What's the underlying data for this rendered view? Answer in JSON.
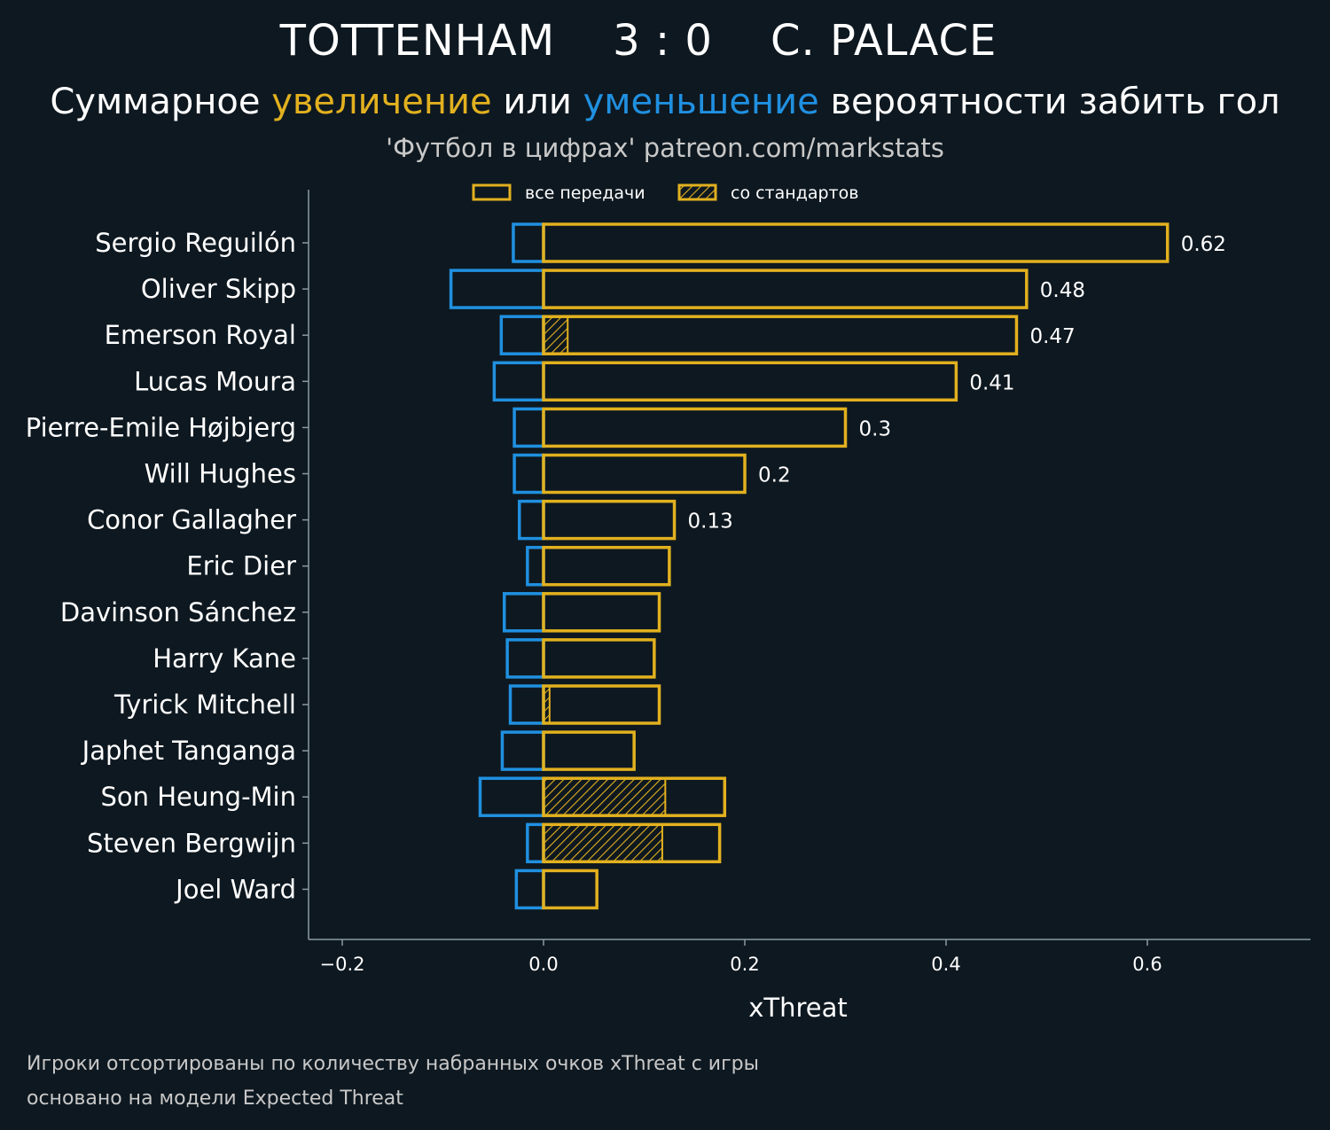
{
  "header": {
    "home_team": "TOTTENHAM",
    "score": "3 : 0",
    "away_team": "C. PALACE",
    "subtitle_part1": "Суммарное ",
    "subtitle_increase": "увеличение",
    "subtitle_part2": " или ",
    "subtitle_decrease": "уменьшение",
    "subtitle_part3": " вероятности забить гол",
    "source": "'Футбол в цифрах' patreon.com/markstats"
  },
  "footnotes": {
    "line1": "Игроки отсортированы по количеству набранных очков xThreat с игры",
    "line2": "основано на модели Expected Threat"
  },
  "colors": {
    "background": "#0e1820",
    "increase": "#e2b11f",
    "decrease": "#2090e0",
    "axis": "#8a9aa0",
    "text": "#ffffff"
  },
  "chart_data": {
    "type": "bar",
    "orientation": "horizontal",
    "title": "TOTTENHAM 3 : 0 C. PALACE",
    "xlabel": "xThreat",
    "ylabel": "",
    "xlim": [
      -0.23,
      0.76
    ],
    "xticks": [
      -0.2,
      0.0,
      0.2,
      0.4,
      0.6
    ],
    "xtick_labels": [
      "−0.2",
      "0.0",
      "0.2",
      "0.4",
      "0.6"
    ],
    "legend": {
      "placement": "top-center",
      "entries": [
        "все передачи",
        "со стандартов"
      ]
    },
    "categories": [
      "Sergio Reguilón",
      "Oliver Skipp",
      "Emerson Royal",
      "Lucas Moura",
      "Pierre-Emile Højbjerg",
      "Will Hughes",
      "Conor Gallagher",
      "Eric Dier",
      "Davinson Sánchez",
      "Harry Kane",
      "Tyrick Mitchell",
      "Japhet Tanganga",
      "Son Heung-Min",
      "Steven Bergwijn",
      "Joel Ward"
    ],
    "series": [
      {
        "name": "увеличение (все передачи)",
        "values": [
          0.62,
          0.48,
          0.47,
          0.41,
          0.3,
          0.2,
          0.13,
          0.125,
          0.115,
          0.11,
          0.115,
          0.09,
          0.18,
          0.175,
          0.053
        ]
      },
      {
        "name": "уменьшение",
        "values": [
          -0.03,
          -0.092,
          -0.042,
          -0.049,
          -0.029,
          -0.029,
          -0.024,
          -0.016,
          -0.039,
          -0.036,
          -0.033,
          -0.041,
          -0.063,
          -0.016,
          -0.027
        ]
      },
      {
        "name": "со стандартов",
        "values": [
          0,
          0,
          0.024,
          0,
          0,
          0,
          0,
          0,
          0,
          0,
          0.006,
          0,
          0.121,
          0.118,
          0
        ]
      }
    ],
    "value_labels": [
      "0.62",
      "0.48",
      "0.47",
      "0.41",
      "0.3",
      "0.2",
      "0.13",
      "",
      "",
      "",
      "",
      "",
      "",
      "",
      ""
    ]
  }
}
